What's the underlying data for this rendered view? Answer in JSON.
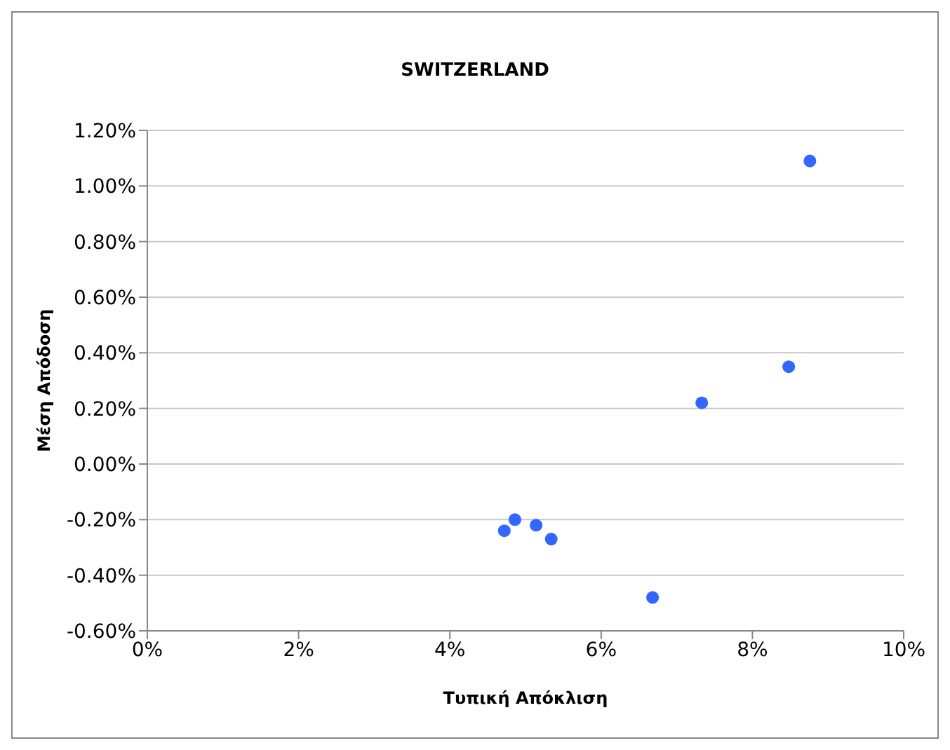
{
  "chart_data": {
    "type": "scatter",
    "title": "SWITZERLAND",
    "xlabel": "Τυπική Απόκλιση",
    "ylabel": "Μέση Απόδοση",
    "x": [
      8.76,
      8.48,
      7.33,
      4.72,
      4.86,
      5.14,
      5.34,
      6.68
    ],
    "series": [
      {
        "color": "#3366ff",
        "values": [
          1.09,
          0.35,
          0.22,
          -0.24,
          -0.2,
          -0.22,
          -0.27,
          -0.48
        ]
      }
    ],
    "xlim": [
      0,
      10
    ],
    "ylim": [
      -0.6,
      1.2
    ],
    "xticks": [
      {
        "value": 0,
        "label": "0%"
      },
      {
        "value": 2,
        "label": "2%"
      },
      {
        "value": 4,
        "label": "4%"
      },
      {
        "value": 6,
        "label": "6%"
      },
      {
        "value": 8,
        "label": "8%"
      },
      {
        "value": 10,
        "label": "10%"
      }
    ],
    "yticks": [
      {
        "value": -0.6,
        "label": "-0.60%"
      },
      {
        "value": -0.4,
        "label": "-0.40%"
      },
      {
        "value": -0.2,
        "label": "-0.20%"
      },
      {
        "value": 0,
        "label": "0.00%"
      },
      {
        "value": 0.2,
        "label": "0.20%"
      },
      {
        "value": 0.4,
        "label": "0.40%"
      },
      {
        "value": 0.6,
        "label": "0.60%"
      },
      {
        "value": 0.8,
        "label": "0.80%"
      },
      {
        "value": 1,
        "label": "1.00%"
      },
      {
        "value": 1.2,
        "label": "1.20%"
      }
    ],
    "grid": "y",
    "marker": "circle"
  }
}
